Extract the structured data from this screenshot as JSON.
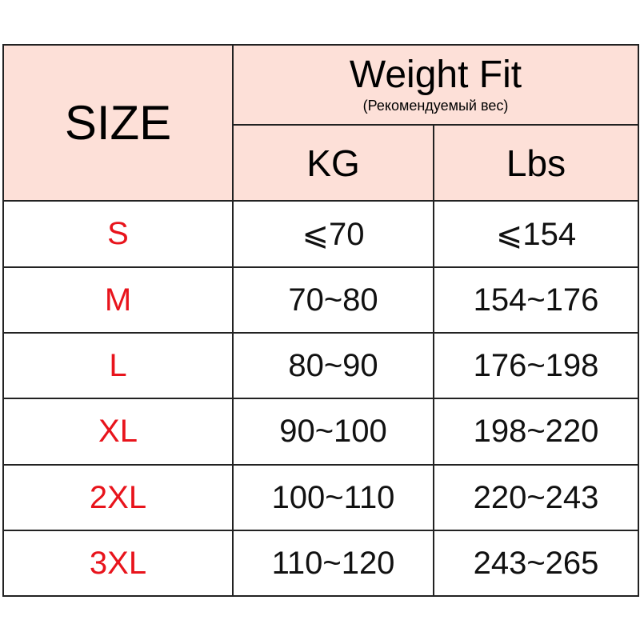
{
  "header": {
    "size_label": "SIZE",
    "weight_fit_title": "Weight Fit",
    "weight_fit_subtitle": "(Рекомендуемый вес)",
    "kg_label": "KG",
    "lbs_label": "Lbs"
  },
  "colors": {
    "header_bg": "#fde0d8",
    "size_text": "#e8141c",
    "border": "#222222"
  },
  "rows": [
    {
      "size": "S",
      "kg": "⩽70",
      "lbs": "⩽154"
    },
    {
      "size": "M",
      "kg": "70~80",
      "lbs": "154~176"
    },
    {
      "size": "L",
      "kg": "80~90",
      "lbs": "176~198"
    },
    {
      "size": "XL",
      "kg": "90~100",
      "lbs": "198~220"
    },
    {
      "size": "2XL",
      "kg": "100~110",
      "lbs": "220~243"
    },
    {
      "size": "3XL",
      "kg": "110~120",
      "lbs": "243~265"
    }
  ]
}
